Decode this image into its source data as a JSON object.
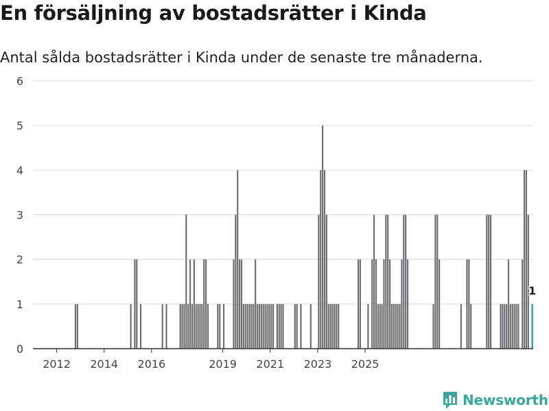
{
  "header": {
    "title": "En försäljning av bostadsrätter i Kinda",
    "subtitle": "Antal sålda bostadsrätter i Kinda under de senaste tre månaderna."
  },
  "brand": {
    "name": "Newsworthy"
  },
  "colors": {
    "bar": "#6f6e72",
    "highlight": "#1b9a8c",
    "grid": "#dddddd",
    "axis": "#333333",
    "brand": "#3aa79a"
  },
  "chart_data": {
    "type": "bar",
    "title": "En försäljning av bostadsrätter i Kinda",
    "xlabel": "",
    "ylabel": "",
    "ylim": [
      0,
      6
    ],
    "yticks": [
      "0",
      "1",
      "2",
      "3",
      "4",
      "5",
      "6"
    ],
    "xticks": [
      {
        "label": "2012",
        "year": 2012
      },
      {
        "label": "2014",
        "year": 2014
      },
      {
        "label": "2016",
        "year": 2016
      },
      {
        "label": "2019",
        "year": 2019
      },
      {
        "label": "2021",
        "year": 2021
      },
      {
        "label": "2023",
        "year": 2023
      },
      {
        "label": "2025",
        "year": 2025
      }
    ],
    "start": {
      "year": 2011,
      "month": 1
    },
    "series": [
      {
        "name": "Sålda bostadsrätter",
        "values": [
          0,
          0,
          0,
          0,
          0,
          0,
          0,
          0,
          0,
          0,
          0,
          0,
          0,
          0,
          0,
          0,
          0,
          0,
          0,
          0,
          0,
          1,
          1,
          0,
          0,
          0,
          0,
          0,
          0,
          0,
          0,
          0,
          0,
          0,
          0,
          0,
          0,
          0,
          0,
          0,
          0,
          0,
          0,
          0,
          0,
          0,
          0,
          0,
          0,
          1,
          0,
          2,
          2,
          0,
          1,
          0,
          0,
          0,
          0,
          0,
          0,
          0,
          0,
          0,
          0,
          1,
          0,
          1,
          0,
          0,
          0,
          0,
          0,
          0,
          1,
          1,
          1,
          3,
          1,
          2,
          1,
          2,
          1,
          1,
          1,
          1,
          2,
          2,
          1,
          0,
          0,
          0,
          0,
          1,
          1,
          0,
          1,
          0,
          0,
          0,
          0,
          2,
          3,
          4,
          2,
          2,
          1,
          1,
          1,
          1,
          1,
          1,
          2,
          1,
          1,
          1,
          1,
          1,
          1,
          1,
          1,
          1,
          0,
          1,
          1,
          1,
          1,
          0,
          0,
          0,
          0,
          0,
          1,
          1,
          0,
          1,
          0,
          0,
          0,
          0,
          1,
          0,
          0,
          0,
          3,
          4,
          5,
          4,
          3,
          1,
          1,
          1,
          1,
          1,
          1,
          0,
          0,
          0,
          0,
          0,
          0,
          0,
          0,
          0,
          2,
          2,
          0,
          0,
          0,
          1,
          0,
          2,
          3,
          2,
          1,
          1,
          1,
          2,
          3,
          3,
          2,
          1,
          1,
          1,
          1,
          1,
          2,
          3,
          3,
          2,
          0,
          0,
          0,
          0,
          0,
          0,
          0,
          0,
          0,
          0,
          0,
          0,
          1,
          3,
          3,
          2,
          0,
          0,
          0,
          0,
          0,
          0,
          0,
          0,
          0,
          0,
          1,
          0,
          0,
          2,
          2,
          1,
          0,
          0,
          0,
          0,
          0,
          0,
          0,
          3,
          3,
          3,
          0,
          0,
          0,
          0,
          1,
          1,
          1,
          1,
          2,
          1,
          1,
          1,
          1,
          1,
          0,
          2,
          4,
          4,
          3,
          0,
          1
        ],
        "highlight_last": true,
        "last_label": "1"
      }
    ]
  }
}
